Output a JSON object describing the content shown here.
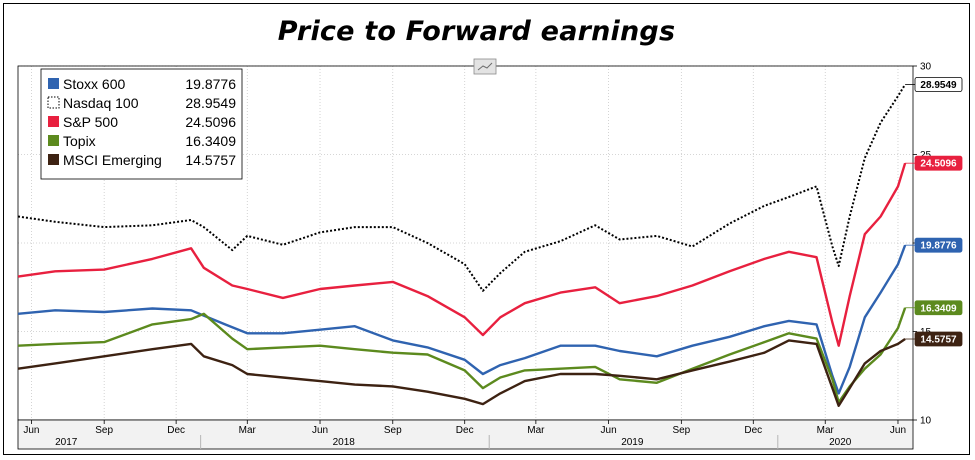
{
  "chart_data": {
    "type": "line",
    "title": "Price to Forward earnings",
    "ylim": [
      10,
      30
    ],
    "y_ticks": [
      10,
      15,
      20,
      25,
      30
    ],
    "x_range": [
      "2017-05-15",
      "2020-06-20"
    ],
    "x_month_ticks": [
      {
        "date": "2017-06-01",
        "label": "Jun"
      },
      {
        "date": "2017-09-01",
        "label": "Sep"
      },
      {
        "date": "2017-12-01",
        "label": "Dec"
      },
      {
        "date": "2018-03-01",
        "label": "Mar"
      },
      {
        "date": "2018-06-01",
        "label": "Jun"
      },
      {
        "date": "2018-09-01",
        "label": "Sep"
      },
      {
        "date": "2018-12-01",
        "label": "Dec"
      },
      {
        "date": "2019-03-01",
        "label": "Mar"
      },
      {
        "date": "2019-06-01",
        "label": "Jun"
      },
      {
        "date": "2019-09-01",
        "label": "Sep"
      },
      {
        "date": "2019-12-01",
        "label": "Dec"
      },
      {
        "date": "2020-03-01",
        "label": "Mar"
      },
      {
        "date": "2020-06-01",
        "label": "Jun"
      }
    ],
    "x_year_labels": [
      {
        "date": "2017-07-15",
        "label": "2017"
      },
      {
        "date": "2018-07-01",
        "label": "2018"
      },
      {
        "date": "2019-07-01",
        "label": "2019"
      },
      {
        "date": "2020-03-20",
        "label": "2020"
      }
    ],
    "x_year_dividers": [
      "2018-01-01",
      "2019-01-01",
      "2020-01-01"
    ],
    "legend_placement": "top-left",
    "series": [
      {
        "name": "Stoxx 600",
        "last_value": "19.8776",
        "color": "#2f63b0",
        "style": "solid",
        "x": [
          "2017-05-15",
          "2017-07-01",
          "2017-09-01",
          "2017-11-01",
          "2017-12-20",
          "2018-01-05",
          "2018-02-01",
          "2018-03-01",
          "2018-04-15",
          "2018-06-01",
          "2018-07-15",
          "2018-09-01",
          "2018-10-15",
          "2018-12-01",
          "2018-12-24",
          "2019-01-15",
          "2019-02-15",
          "2019-04-01",
          "2019-05-15",
          "2019-06-15",
          "2019-08-01",
          "2019-09-15",
          "2019-11-01",
          "2019-12-15",
          "2020-01-15",
          "2020-02-19",
          "2020-03-10",
          "2020-03-18",
          "2020-04-01",
          "2020-04-20",
          "2020-05-10",
          "2020-06-01",
          "2020-06-10"
        ],
        "values": [
          16.0,
          16.2,
          16.1,
          16.3,
          16.2,
          15.9,
          15.4,
          14.9,
          14.9,
          15.1,
          15.3,
          14.5,
          14.1,
          13.4,
          12.6,
          13.1,
          13.5,
          14.2,
          14.2,
          13.9,
          13.6,
          14.2,
          14.7,
          15.3,
          15.6,
          15.4,
          12.5,
          11.5,
          13.0,
          15.8,
          17.2,
          18.8,
          19.8776
        ]
      },
      {
        "name": "Nasdaq 100",
        "last_value": "28.9549",
        "color": "#000000",
        "style": "dotted",
        "x": [
          "2017-05-15",
          "2017-07-01",
          "2017-09-01",
          "2017-11-01",
          "2017-12-20",
          "2018-01-05",
          "2018-02-10",
          "2018-03-01",
          "2018-04-15",
          "2018-06-01",
          "2018-07-15",
          "2018-09-01",
          "2018-10-15",
          "2018-12-01",
          "2018-12-24",
          "2019-01-15",
          "2019-02-15",
          "2019-04-01",
          "2019-05-15",
          "2019-06-15",
          "2019-08-01",
          "2019-09-15",
          "2019-11-01",
          "2019-12-15",
          "2020-01-15",
          "2020-02-19",
          "2020-03-10",
          "2020-03-18",
          "2020-04-01",
          "2020-04-20",
          "2020-05-10",
          "2020-06-01",
          "2020-06-10"
        ],
        "values": [
          21.5,
          21.2,
          20.9,
          21.0,
          21.3,
          20.9,
          19.6,
          20.4,
          19.9,
          20.6,
          20.9,
          20.9,
          20.0,
          18.8,
          17.3,
          18.3,
          19.5,
          20.1,
          21.0,
          20.2,
          20.4,
          19.8,
          21.1,
          22.1,
          22.6,
          23.2,
          19.8,
          18.7,
          21.5,
          24.8,
          26.8,
          28.3,
          28.9549
        ]
      },
      {
        "name": "S&P 500",
        "last_value": "24.5096",
        "color": "#e8203f",
        "style": "solid",
        "x": [
          "2017-05-15",
          "2017-07-01",
          "2017-09-01",
          "2017-11-01",
          "2017-12-20",
          "2018-01-05",
          "2018-02-10",
          "2018-03-01",
          "2018-04-15",
          "2018-06-01",
          "2018-07-15",
          "2018-09-01",
          "2018-10-15",
          "2018-12-01",
          "2018-12-24",
          "2019-01-15",
          "2019-02-15",
          "2019-04-01",
          "2019-05-15",
          "2019-06-15",
          "2019-08-01",
          "2019-09-15",
          "2019-11-01",
          "2019-12-15",
          "2020-01-15",
          "2020-02-19",
          "2020-03-10",
          "2020-03-18",
          "2020-04-01",
          "2020-04-20",
          "2020-05-10",
          "2020-06-01",
          "2020-06-10"
        ],
        "values": [
          18.1,
          18.4,
          18.5,
          19.1,
          19.7,
          18.6,
          17.6,
          17.4,
          16.9,
          17.4,
          17.6,
          17.8,
          17.0,
          15.8,
          14.8,
          15.8,
          16.6,
          17.2,
          17.5,
          16.6,
          17.0,
          17.6,
          18.4,
          19.1,
          19.5,
          19.2,
          15.5,
          14.2,
          17.0,
          20.5,
          21.5,
          23.2,
          24.5096
        ]
      },
      {
        "name": "Topix",
        "last_value": "16.3409",
        "color": "#5c8a1e",
        "style": "solid",
        "x": [
          "2017-05-15",
          "2017-07-01",
          "2017-09-01",
          "2017-11-01",
          "2017-12-20",
          "2018-01-05",
          "2018-02-10",
          "2018-03-01",
          "2018-04-15",
          "2018-06-01",
          "2018-07-15",
          "2018-09-01",
          "2018-10-15",
          "2018-12-01",
          "2018-12-24",
          "2019-01-15",
          "2019-02-15",
          "2019-04-01",
          "2019-05-15",
          "2019-06-15",
          "2019-08-01",
          "2019-09-15",
          "2019-11-01",
          "2019-12-15",
          "2020-01-15",
          "2020-02-19",
          "2020-03-10",
          "2020-03-18",
          "2020-04-01",
          "2020-04-20",
          "2020-05-10",
          "2020-06-01",
          "2020-06-10"
        ],
        "values": [
          14.2,
          14.3,
          14.4,
          15.4,
          15.7,
          16.0,
          14.6,
          14.0,
          14.1,
          14.2,
          14.0,
          13.8,
          13.7,
          12.8,
          11.8,
          12.4,
          12.8,
          12.9,
          13.0,
          12.3,
          12.1,
          12.9,
          13.7,
          14.4,
          14.9,
          14.6,
          12.3,
          11.0,
          11.9,
          12.9,
          13.7,
          15.2,
          16.3409
        ]
      },
      {
        "name": "MSCI Emerging",
        "last_value": "14.5757",
        "color": "#3d2212",
        "style": "solid",
        "x": [
          "2017-05-15",
          "2017-07-01",
          "2017-09-01",
          "2017-11-01",
          "2017-12-20",
          "2018-01-05",
          "2018-02-10",
          "2018-03-01",
          "2018-04-15",
          "2018-06-01",
          "2018-07-15",
          "2018-09-01",
          "2018-10-15",
          "2018-12-01",
          "2018-12-24",
          "2019-01-15",
          "2019-02-15",
          "2019-04-01",
          "2019-05-15",
          "2019-06-15",
          "2019-08-01",
          "2019-09-15",
          "2019-11-01",
          "2019-12-15",
          "2020-01-15",
          "2020-02-19",
          "2020-03-10",
          "2020-03-18",
          "2020-04-01",
          "2020-04-20",
          "2020-05-10",
          "2020-06-01",
          "2020-06-10"
        ],
        "values": [
          12.9,
          13.2,
          13.6,
          14.0,
          14.3,
          13.6,
          13.1,
          12.6,
          12.4,
          12.2,
          12.0,
          11.9,
          11.6,
          11.2,
          10.9,
          11.5,
          12.2,
          12.6,
          12.6,
          12.5,
          12.3,
          12.8,
          13.3,
          13.8,
          14.5,
          14.3,
          11.8,
          10.8,
          11.8,
          13.2,
          13.9,
          14.3,
          14.5757
        ]
      }
    ]
  }
}
